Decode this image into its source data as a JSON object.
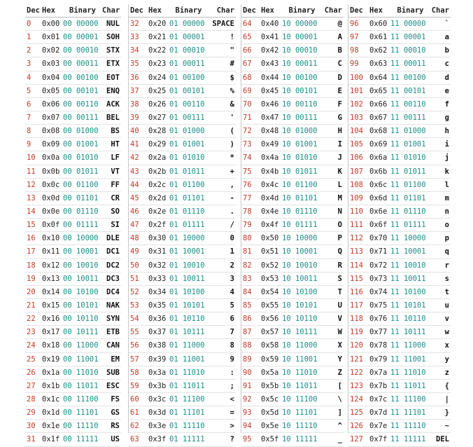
{
  "headers": {
    "dec": "Dec",
    "hex": "Hex",
    "binary": "Binary",
    "char": "Char"
  },
  "colors": {
    "dec": "#c0392b",
    "binary": "#1a8f86",
    "text": "#111111",
    "rule": "#e3e3e3"
  },
  "columns": [
    [
      [
        "0",
        "0x00",
        "00 00000",
        "NUL"
      ],
      [
        "1",
        "0x01",
        "00 00001",
        "SOH"
      ],
      [
        "2",
        "0x02",
        "00 00010",
        "STX"
      ],
      [
        "3",
        "0x03",
        "00 00011",
        "ETX"
      ],
      [
        "4",
        "0x04",
        "00 00100",
        "EOT"
      ],
      [
        "5",
        "0x05",
        "00 00101",
        "ENQ"
      ],
      [
        "6",
        "0x06",
        "00 00110",
        "ACK"
      ],
      [
        "7",
        "0x07",
        "00 00111",
        "BEL"
      ],
      [
        "8",
        "0x08",
        "00 01000",
        "BS"
      ],
      [
        "9",
        "0x09",
        "00 01001",
        "HT"
      ],
      [
        "10",
        "0x0a",
        "00 01010",
        "LF"
      ],
      [
        "11",
        "0x0b",
        "00 01011",
        "VT"
      ],
      [
        "12",
        "0x0c",
        "00 01100",
        "FF"
      ],
      [
        "13",
        "0x0d",
        "00 01101",
        "CR"
      ],
      [
        "14",
        "0x0e",
        "00 01110",
        "SO"
      ],
      [
        "15",
        "0x0f",
        "00 01111",
        "SI"
      ],
      [
        "16",
        "0x10",
        "00 10000",
        "DLE"
      ],
      [
        "17",
        "0x11",
        "00 10001",
        "DC1"
      ],
      [
        "18",
        "0x12",
        "00 10010",
        "DC2"
      ],
      [
        "19",
        "0x13",
        "00 10011",
        "DC3"
      ],
      [
        "20",
        "0x14",
        "00 10100",
        "DC4"
      ],
      [
        "21",
        "0x15",
        "00 10101",
        "NAK"
      ],
      [
        "22",
        "0x16",
        "00 10110",
        "SYN"
      ],
      [
        "23",
        "0x17",
        "00 10111",
        "ETB"
      ],
      [
        "24",
        "0x18",
        "00 11000",
        "CAN"
      ],
      [
        "25",
        "0x19",
        "00 11001",
        "EM"
      ],
      [
        "26",
        "0x1a",
        "00 11010",
        "SUB"
      ],
      [
        "27",
        "0x1b",
        "00 11011",
        "ESC"
      ],
      [
        "28",
        "0x1c",
        "00 11100",
        "FS"
      ],
      [
        "29",
        "0x1d",
        "00 11101",
        "GS"
      ],
      [
        "30",
        "0x1e",
        "00 11110",
        "RS"
      ],
      [
        "31",
        "0x1f",
        "00 11111",
        "US"
      ]
    ],
    [
      [
        "32",
        "0x20",
        "01 00000",
        "SPACE"
      ],
      [
        "33",
        "0x21",
        "01 00001",
        "!"
      ],
      [
        "34",
        "0x22",
        "01 00010",
        "\""
      ],
      [
        "35",
        "0x23",
        "01 00011",
        "#"
      ],
      [
        "36",
        "0x24",
        "01 00100",
        "$"
      ],
      [
        "37",
        "0x25",
        "01 00101",
        "%"
      ],
      [
        "38",
        "0x26",
        "01 00110",
        "&"
      ],
      [
        "39",
        "0x27",
        "01 00111",
        "'"
      ],
      [
        "40",
        "0x28",
        "01 01000",
        "("
      ],
      [
        "41",
        "0x29",
        "01 01001",
        ")"
      ],
      [
        "42",
        "0x2a",
        "01 01010",
        "*"
      ],
      [
        "43",
        "0x2b",
        "01 01011",
        "+"
      ],
      [
        "44",
        "0x2c",
        "01 01100",
        ","
      ],
      [
        "45",
        "0x2d",
        "01 01101",
        "-"
      ],
      [
        "46",
        "0x2e",
        "01 01110",
        "."
      ],
      [
        "47",
        "0x2f",
        "01 01111",
        "/"
      ],
      [
        "48",
        "0x30",
        "01 10000",
        "0"
      ],
      [
        "49",
        "0x31",
        "01 10001",
        "1"
      ],
      [
        "50",
        "0x32",
        "01 10010",
        "2"
      ],
      [
        "51",
        "0x33",
        "01 10011",
        "3"
      ],
      [
        "52",
        "0x34",
        "01 10100",
        "4"
      ],
      [
        "53",
        "0x35",
        "01 10101",
        "5"
      ],
      [
        "54",
        "0x36",
        "01 10110",
        "6"
      ],
      [
        "55",
        "0x37",
        "01 10111",
        "7"
      ],
      [
        "56",
        "0x38",
        "01 11000",
        "8"
      ],
      [
        "57",
        "0x39",
        "01 11001",
        "9"
      ],
      [
        "58",
        "0x3a",
        "01 11010",
        ":"
      ],
      [
        "59",
        "0x3b",
        "01 11011",
        ";"
      ],
      [
        "60",
        "0x3c",
        "01 11100",
        "<"
      ],
      [
        "61",
        "0x3d",
        "01 11101",
        "="
      ],
      [
        "62",
        "0x3e",
        "01 11110",
        ">"
      ],
      [
        "63",
        "0x3f",
        "01 11111",
        "?"
      ]
    ],
    [
      [
        "64",
        "0x40",
        "10 00000",
        "@"
      ],
      [
        "65",
        "0x41",
        "10 00001",
        "A"
      ],
      [
        "66",
        "0x42",
        "10 00010",
        "B"
      ],
      [
        "67",
        "0x43",
        "10 00011",
        "C"
      ],
      [
        "68",
        "0x44",
        "10 00100",
        "D"
      ],
      [
        "69",
        "0x45",
        "10 00101",
        "E"
      ],
      [
        "70",
        "0x46",
        "10 00110",
        "F"
      ],
      [
        "71",
        "0x47",
        "10 00111",
        "G"
      ],
      [
        "72",
        "0x48",
        "10 01000",
        "H"
      ],
      [
        "73",
        "0x49",
        "10 01001",
        "I"
      ],
      [
        "74",
        "0x4a",
        "10 01010",
        "J"
      ],
      [
        "75",
        "0x4b",
        "10 01011",
        "K"
      ],
      [
        "76",
        "0x4c",
        "10 01100",
        "L"
      ],
      [
        "77",
        "0x4d",
        "10 01101",
        "M"
      ],
      [
        "78",
        "0x4e",
        "10 01110",
        "N"
      ],
      [
        "79",
        "0x4f",
        "10 01111",
        "O"
      ],
      [
        "80",
        "0x50",
        "10 10000",
        "P"
      ],
      [
        "81",
        "0x51",
        "10 10001",
        "Q"
      ],
      [
        "82",
        "0x52",
        "10 10010",
        "R"
      ],
      [
        "83",
        "0x53",
        "10 10011",
        "S"
      ],
      [
        "84",
        "0x54",
        "10 10100",
        "T"
      ],
      [
        "85",
        "0x55",
        "10 10101",
        "U"
      ],
      [
        "86",
        "0x56",
        "10 10110",
        "V"
      ],
      [
        "87",
        "0x57",
        "10 10111",
        "W"
      ],
      [
        "88",
        "0x58",
        "10 11000",
        "X"
      ],
      [
        "89",
        "0x59",
        "10 11001",
        "Y"
      ],
      [
        "90",
        "0x5a",
        "10 11010",
        "Z"
      ],
      [
        "91",
        "0x5b",
        "10 11011",
        "["
      ],
      [
        "92",
        "0x5c",
        "10 11100",
        "\\"
      ],
      [
        "93",
        "0x5d",
        "10 11101",
        "]"
      ],
      [
        "94",
        "0x5e",
        "10 11110",
        "^"
      ],
      [
        "95",
        "0x5f",
        "10 11111",
        "_"
      ]
    ],
    [
      [
        "96",
        "0x60",
        "11 00000",
        "`"
      ],
      [
        "97",
        "0x61",
        "11 00001",
        "a"
      ],
      [
        "98",
        "0x62",
        "11 00010",
        "b"
      ],
      [
        "99",
        "0x63",
        "11 00011",
        "c"
      ],
      [
        "100",
        "0x64",
        "11 00100",
        "d"
      ],
      [
        "101",
        "0x65",
        "11 00101",
        "e"
      ],
      [
        "102",
        "0x66",
        "11 00110",
        "f"
      ],
      [
        "103",
        "0x67",
        "11 00111",
        "g"
      ],
      [
        "104",
        "0x68",
        "11 01000",
        "h"
      ],
      [
        "105",
        "0x69",
        "11 01001",
        "i"
      ],
      [
        "106",
        "0x6a",
        "11 01010",
        "j"
      ],
      [
        "107",
        "0x6b",
        "11 01011",
        "k"
      ],
      [
        "108",
        "0x6c",
        "11 01100",
        "l"
      ],
      [
        "109",
        "0x6d",
        "11 01101",
        "m"
      ],
      [
        "110",
        "0x6e",
        "11 01110",
        "n"
      ],
      [
        "111",
        "0x6f",
        "11 01111",
        "o"
      ],
      [
        "112",
        "0x70",
        "11 10000",
        "p"
      ],
      [
        "113",
        "0x71",
        "11 10001",
        "q"
      ],
      [
        "114",
        "0x72",
        "11 10010",
        "r"
      ],
      [
        "115",
        "0x73",
        "11 10011",
        "s"
      ],
      [
        "116",
        "0x74",
        "11 10100",
        "t"
      ],
      [
        "117",
        "0x75",
        "11 10101",
        "u"
      ],
      [
        "118",
        "0x76",
        "11 10110",
        "v"
      ],
      [
        "119",
        "0x77",
        "11 10111",
        "w"
      ],
      [
        "120",
        "0x78",
        "11 11000",
        "x"
      ],
      [
        "121",
        "0x79",
        "11 11001",
        "y"
      ],
      [
        "122",
        "0x7a",
        "11 11010",
        "z"
      ],
      [
        "123",
        "0x7b",
        "11 11011",
        "{"
      ],
      [
        "124",
        "0x7c",
        "11 11100",
        "|"
      ],
      [
        "125",
        "0x7d",
        "11 11101",
        "}"
      ],
      [
        "126",
        "0x7e",
        "11 11110",
        "~"
      ],
      [
        "127",
        "0x7f",
        "11 11111",
        "DEL"
      ]
    ]
  ]
}
